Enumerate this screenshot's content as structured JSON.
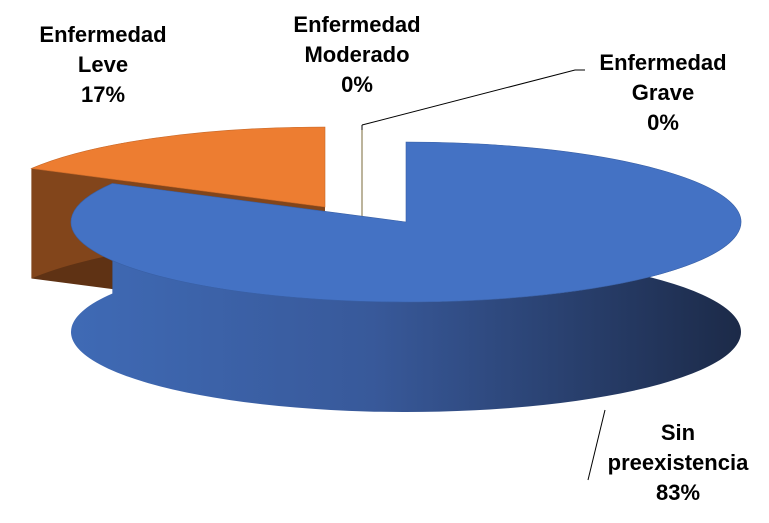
{
  "chart_data": {
    "type": "pie3d",
    "categories": [
      "Sin preexistencia",
      "Enfermedad Leve",
      "Enfermedad Moderado",
      "Enfermedad Grave"
    ],
    "values": [
      83,
      17,
      0,
      0
    ],
    "value_labels": [
      "83%",
      "17%",
      "0%",
      "0%"
    ],
    "colors": [
      "#4472c4",
      "#ed7d31",
      "#ffc000",
      "#a5a5a5"
    ]
  }
}
